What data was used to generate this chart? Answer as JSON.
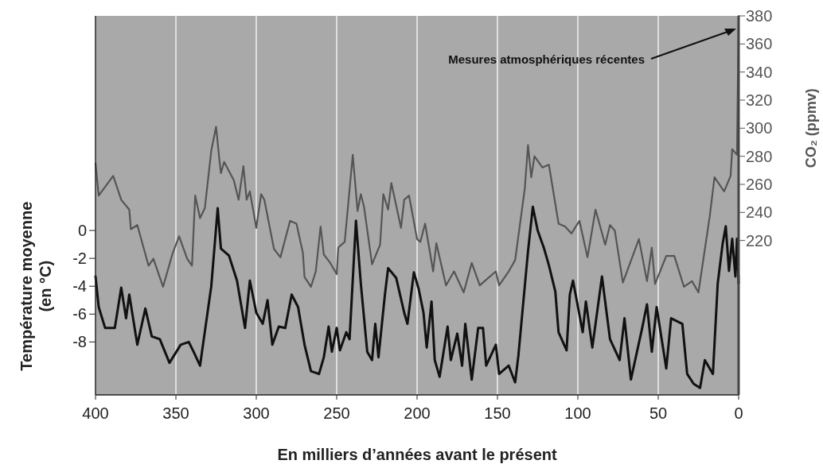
{
  "chart_data": {
    "type": "line",
    "xlabel": "En milliers d’années avant le présent",
    "ylabel": "Température moyenne\n(en °C)",
    "y2label": "CO₂ (ppmv)",
    "annotations": [
      "Mesures atmosphériques récentes"
    ],
    "xlim": [
      400,
      0
    ],
    "xticks": [
      400,
      350,
      300,
      250,
      200,
      150,
      100,
      50,
      0
    ],
    "ylim": [
      -11.8,
      15.4
    ],
    "yticks": [
      0,
      -2,
      -4,
      -6,
      -8
    ],
    "y2lim": [
      110,
      380
    ],
    "y2ticks": [
      220,
      240,
      260,
      280,
      300,
      320,
      340,
      360,
      380
    ],
    "grid": "x",
    "marker": "none",
    "line_style": "solid",
    "series": [
      {
        "axis": "y2",
        "color": "#555555",
        "x": [
          400,
          398,
          389,
          384,
          379,
          378,
          374,
          367,
          364,
          358,
          352,
          348,
          343,
          340,
          338,
          335,
          332,
          328,
          325,
          323,
          322,
          320,
          314,
          311,
          308,
          306,
          304,
          300,
          297,
          295,
          289,
          285,
          279,
          275,
          271,
          270,
          266,
          263,
          260,
          258,
          254,
          250,
          249,
          245,
          240,
          237,
          235,
          233,
          228,
          223,
          221,
          218,
          216,
          210,
          208,
          205,
          200,
          198,
          195,
          190,
          188,
          182,
          177,
          171,
          166,
          161,
          151,
          149,
          143,
          139,
          133,
          131,
          129,
          127,
          122,
          118,
          112,
          108,
          104,
          99,
          94,
          89,
          83,
          80,
          77,
          72,
          62,
          57,
          54,
          52,
          45,
          40,
          34,
          29,
          25,
          18,
          15,
          9,
          5,
          4,
          1,
          0
        ],
        "values": [
          275,
          252,
          266,
          249,
          242,
          228,
          231,
          202,
          207,
          187,
          211,
          223,
          207,
          202,
          252,
          236,
          243,
          284,
          301,
          278,
          268,
          276,
          263,
          249,
          273,
          249,
          255,
          229,
          253,
          249,
          214,
          208,
          234,
          232,
          211,
          194,
          187,
          198,
          230,
          210,
          204,
          196,
          215,
          219,
          281,
          241,
          253,
          244,
          203,
          217,
          253,
          242,
          261,
          229,
          249,
          252,
          221,
          219,
          232,
          198,
          218,
          188,
          198,
          183,
          204,
          188,
          198,
          188,
          198,
          206,
          257,
          288,
          265,
          280,
          272,
          274,
          232,
          230,
          225,
          234,
          208,
          242,
          217,
          231,
          227,
          190,
          221,
          191,
          215,
          189,
          209,
          209,
          187,
          191,
          183,
          237,
          265,
          255,
          266,
          285,
          281,
          380
        ]
      },
      {
        "axis": "y",
        "color": "#111111",
        "x": [
          400,
          398,
          394,
          388,
          384,
          381,
          379,
          374,
          369,
          365,
          360,
          354,
          347,
          342,
          339,
          335,
          328,
          324,
          322,
          317,
          312,
          307,
          304,
          300,
          296,
          293,
          290,
          286,
          282,
          278,
          274,
          270,
          266,
          261,
          258,
          255,
          253,
          250,
          248,
          244,
          242,
          238,
          235,
          231,
          228,
          226,
          224,
          220,
          218,
          213,
          208,
          206,
          202,
          199,
          196,
          194,
          191,
          189,
          186,
          181,
          179,
          175,
          172,
          170,
          166,
          162,
          159,
          157,
          151,
          149,
          143,
          139,
          137,
          133,
          131,
          128,
          125,
          121,
          118,
          114,
          112,
          107,
          105,
          103,
          97,
          95,
          91,
          85,
          80,
          74,
          71,
          67,
          60,
          57,
          54,
          51,
          45,
          42,
          35,
          32,
          28,
          24,
          21,
          16,
          13,
          10,
          8,
          6,
          4,
          2,
          1,
          0
        ],
        "values": [
          -3.3,
          -5.5,
          -7.0,
          -7.0,
          -4.1,
          -6.3,
          -4.6,
          -8.2,
          -5.6,
          -7.6,
          -7.8,
          -9.5,
          -8.2,
          -8.0,
          -8.7,
          -9.7,
          -4.0,
          1.6,
          -1.3,
          -1.8,
          -3.6,
          -7.0,
          -3.6,
          -5.9,
          -6.7,
          -5.0,
          -8.2,
          -6.9,
          -7.0,
          -4.6,
          -5.5,
          -8.2,
          -10.1,
          -10.3,
          -9.1,
          -6.9,
          -8.7,
          -7.0,
          -8.6,
          -7.3,
          -7.8,
          0.7,
          -3.8,
          -8.7,
          -9.3,
          -6.7,
          -9.1,
          -4.6,
          -2.7,
          -3.4,
          -5.9,
          -6.7,
          -3.0,
          -4.2,
          -5.9,
          -8.4,
          -5.1,
          -9.3,
          -10.5,
          -6.9,
          -9.3,
          -7.4,
          -9.7,
          -6.7,
          -10.7,
          -7.0,
          -7.0,
          -9.7,
          -8.2,
          -10.3,
          -9.7,
          -10.9,
          -9.0,
          -4.0,
          -1.5,
          1.7,
          0.0,
          -1.3,
          -2.5,
          -4.4,
          -7.3,
          -8.6,
          -4.6,
          -3.6,
          -7.3,
          -5.1,
          -8.4,
          -3.3,
          -7.8,
          -9.3,
          -6.3,
          -10.7,
          -7.0,
          -5.3,
          -8.7,
          -5.5,
          -9.9,
          -6.3,
          -6.7,
          -10.3,
          -11.0,
          -11.3,
          -9.3,
          -10.3,
          -3.8,
          -1.0,
          0.3,
          -2.9,
          -0.6,
          -3.3,
          -0.6,
          -3.8
        ]
      }
    ]
  }
}
